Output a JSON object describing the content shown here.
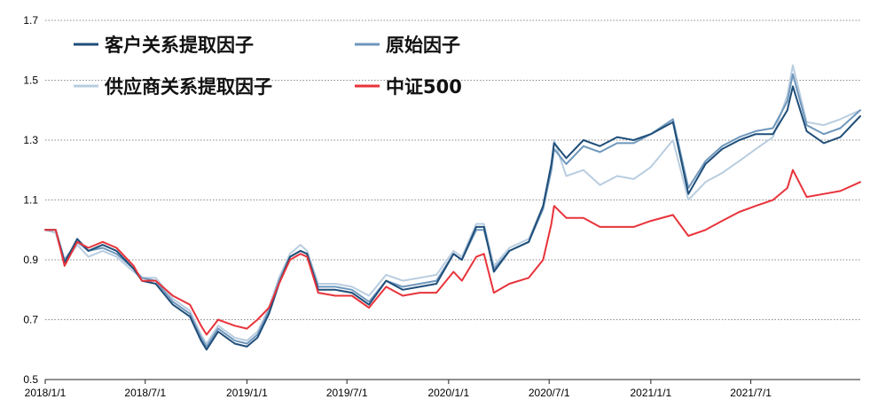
{
  "chart_data": {
    "type": "line",
    "title": "",
    "xlabel": "",
    "ylabel": "",
    "x_range": [
      "2018-01-01",
      "2022-01-15"
    ],
    "ylim": [
      0.5,
      1.7
    ],
    "y_ticks": [
      0.5,
      0.7,
      0.9,
      1.1,
      1.3,
      1.5,
      1.7
    ],
    "y_tick_labels": [
      "0.5",
      "0.7",
      "0.9",
      "1.1",
      "1.3",
      "1.5",
      "1.7"
    ],
    "x_ticks": [
      "2018-01-01",
      "2018-07-01",
      "2019-01-01",
      "2019-07-01",
      "2020-01-01",
      "2020-07-01",
      "2021-01-01",
      "2021-07-01"
    ],
    "x_tick_labels": [
      "2018/1/1",
      "2018/7/1",
      "2019/1/1",
      "2019/7/1",
      "2020/1/1",
      "2020/7/1",
      "2021/1/1",
      "2021/7/1"
    ],
    "grid": "horizontal dotted",
    "legend_position": "top-left",
    "series": [
      {
        "name": "客户关系提取因子",
        "color": "#1f4e79",
        "points": [
          [
            "2018-01-01",
            1.0
          ],
          [
            "2018-01-20",
            1.0
          ],
          [
            "2018-02-05",
            0.89
          ],
          [
            "2018-02-28",
            0.97
          ],
          [
            "2018-03-20",
            0.93
          ],
          [
            "2018-04-15",
            0.95
          ],
          [
            "2018-05-10",
            0.93
          ],
          [
            "2018-06-10",
            0.87
          ],
          [
            "2018-06-25",
            0.83
          ],
          [
            "2018-07-20",
            0.82
          ],
          [
            "2018-08-20",
            0.75
          ],
          [
            "2018-09-20",
            0.71
          ],
          [
            "2018-10-10",
            0.63
          ],
          [
            "2018-10-20",
            0.6
          ],
          [
            "2018-11-10",
            0.66
          ],
          [
            "2018-12-10",
            0.62
          ],
          [
            "2019-01-01",
            0.61
          ],
          [
            "2019-01-20",
            0.64
          ],
          [
            "2019-02-10",
            0.72
          ],
          [
            "2019-02-28",
            0.82
          ],
          [
            "2019-03-20",
            0.91
          ],
          [
            "2019-04-08",
            0.93
          ],
          [
            "2019-04-20",
            0.92
          ],
          [
            "2019-05-10",
            0.8
          ],
          [
            "2019-06-10",
            0.8
          ],
          [
            "2019-07-10",
            0.79
          ],
          [
            "2019-08-10",
            0.75
          ],
          [
            "2019-09-10",
            0.83
          ],
          [
            "2019-10-10",
            0.8
          ],
          [
            "2019-11-10",
            0.81
          ],
          [
            "2019-12-10",
            0.82
          ],
          [
            "2020-01-10",
            0.92
          ],
          [
            "2020-01-25",
            0.9
          ],
          [
            "2020-02-20",
            1.01
          ],
          [
            "2020-03-05",
            1.01
          ],
          [
            "2020-03-23",
            0.86
          ],
          [
            "2020-04-20",
            0.93
          ],
          [
            "2020-05-25",
            0.96
          ],
          [
            "2020-06-20",
            1.08
          ],
          [
            "2020-07-05",
            1.22
          ],
          [
            "2020-07-10",
            1.29
          ],
          [
            "2020-08-01",
            1.24
          ],
          [
            "2020-09-01",
            1.3
          ],
          [
            "2020-10-01",
            1.28
          ],
          [
            "2020-11-01",
            1.31
          ],
          [
            "2020-12-01",
            1.3
          ],
          [
            "2021-01-01",
            1.32
          ],
          [
            "2021-02-10",
            1.36
          ],
          [
            "2021-03-10",
            1.12
          ],
          [
            "2021-04-10",
            1.22
          ],
          [
            "2021-05-10",
            1.27
          ],
          [
            "2021-06-10",
            1.3
          ],
          [
            "2021-07-10",
            1.32
          ],
          [
            "2021-08-10",
            1.32
          ],
          [
            "2021-09-05",
            1.4
          ],
          [
            "2021-09-15",
            1.48
          ],
          [
            "2021-10-10",
            1.33
          ],
          [
            "2021-11-10",
            1.29
          ],
          [
            "2021-12-10",
            1.31
          ],
          [
            "2022-01-15",
            1.38
          ]
        ]
      },
      {
        "name": "原始因子",
        "color": "#6f97bc",
        "points": [
          [
            "2018-01-01",
            1.0
          ],
          [
            "2018-01-20",
            1.0
          ],
          [
            "2018-02-05",
            0.9
          ],
          [
            "2018-02-28",
            0.96
          ],
          [
            "2018-03-20",
            0.93
          ],
          [
            "2018-04-15",
            0.94
          ],
          [
            "2018-05-10",
            0.92
          ],
          [
            "2018-06-10",
            0.87
          ],
          [
            "2018-06-25",
            0.84
          ],
          [
            "2018-07-20",
            0.83
          ],
          [
            "2018-08-20",
            0.76
          ],
          [
            "2018-09-20",
            0.72
          ],
          [
            "2018-10-10",
            0.64
          ],
          [
            "2018-10-20",
            0.61
          ],
          [
            "2018-11-10",
            0.67
          ],
          [
            "2018-12-10",
            0.63
          ],
          [
            "2019-01-01",
            0.62
          ],
          [
            "2019-01-20",
            0.65
          ],
          [
            "2019-02-10",
            0.73
          ],
          [
            "2019-02-28",
            0.83
          ],
          [
            "2019-03-20",
            0.91
          ],
          [
            "2019-04-08",
            0.93
          ],
          [
            "2019-04-20",
            0.92
          ],
          [
            "2019-05-10",
            0.81
          ],
          [
            "2019-06-10",
            0.81
          ],
          [
            "2019-07-10",
            0.8
          ],
          [
            "2019-08-10",
            0.76
          ],
          [
            "2019-09-10",
            0.83
          ],
          [
            "2019-10-10",
            0.81
          ],
          [
            "2019-11-10",
            0.82
          ],
          [
            "2019-12-10",
            0.83
          ],
          [
            "2020-01-10",
            0.92
          ],
          [
            "2020-01-25",
            0.9
          ],
          [
            "2020-02-20",
            1.0
          ],
          [
            "2020-03-05",
            1.0
          ],
          [
            "2020-03-23",
            0.87
          ],
          [
            "2020-04-20",
            0.93
          ],
          [
            "2020-05-25",
            0.96
          ],
          [
            "2020-06-20",
            1.07
          ],
          [
            "2020-07-05",
            1.2
          ],
          [
            "2020-07-10",
            1.27
          ],
          [
            "2020-08-01",
            1.22
          ],
          [
            "2020-09-01",
            1.28
          ],
          [
            "2020-10-01",
            1.26
          ],
          [
            "2020-11-01",
            1.29
          ],
          [
            "2020-12-01",
            1.29
          ],
          [
            "2021-01-01",
            1.32
          ],
          [
            "2021-02-10",
            1.37
          ],
          [
            "2021-03-10",
            1.14
          ],
          [
            "2021-04-10",
            1.23
          ],
          [
            "2021-05-10",
            1.28
          ],
          [
            "2021-06-10",
            1.31
          ],
          [
            "2021-07-10",
            1.33
          ],
          [
            "2021-08-10",
            1.34
          ],
          [
            "2021-09-05",
            1.43
          ],
          [
            "2021-09-15",
            1.52
          ],
          [
            "2021-10-10",
            1.35
          ],
          [
            "2021-11-10",
            1.32
          ],
          [
            "2021-12-10",
            1.34
          ],
          [
            "2022-01-15",
            1.4
          ]
        ]
      },
      {
        "name": "供应商关系提取因子",
        "color": "#b9cde0",
        "points": [
          [
            "2018-01-01",
            1.0
          ],
          [
            "2018-01-20",
            0.99
          ],
          [
            "2018-02-05",
            0.89
          ],
          [
            "2018-02-28",
            0.95
          ],
          [
            "2018-03-20",
            0.91
          ],
          [
            "2018-04-15",
            0.93
          ],
          [
            "2018-05-10",
            0.91
          ],
          [
            "2018-06-10",
            0.86
          ],
          [
            "2018-06-25",
            0.84
          ],
          [
            "2018-07-20",
            0.84
          ],
          [
            "2018-08-20",
            0.77
          ],
          [
            "2018-09-20",
            0.73
          ],
          [
            "2018-10-10",
            0.65
          ],
          [
            "2018-10-20",
            0.62
          ],
          [
            "2018-11-10",
            0.68
          ],
          [
            "2018-12-10",
            0.64
          ],
          [
            "2019-01-01",
            0.63
          ],
          [
            "2019-01-20",
            0.66
          ],
          [
            "2019-02-10",
            0.74
          ],
          [
            "2019-02-28",
            0.84
          ],
          [
            "2019-03-20",
            0.92
          ],
          [
            "2019-04-08",
            0.95
          ],
          [
            "2019-04-20",
            0.93
          ],
          [
            "2019-05-10",
            0.82
          ],
          [
            "2019-06-10",
            0.82
          ],
          [
            "2019-07-10",
            0.81
          ],
          [
            "2019-08-10",
            0.78
          ],
          [
            "2019-09-10",
            0.85
          ],
          [
            "2019-10-10",
            0.83
          ],
          [
            "2019-11-10",
            0.84
          ],
          [
            "2019-12-10",
            0.85
          ],
          [
            "2020-01-10",
            0.93
          ],
          [
            "2020-01-25",
            0.91
          ],
          [
            "2020-02-20",
            1.02
          ],
          [
            "2020-03-05",
            1.02
          ],
          [
            "2020-03-23",
            0.88
          ],
          [
            "2020-04-20",
            0.94
          ],
          [
            "2020-05-25",
            0.97
          ],
          [
            "2020-06-20",
            1.08
          ],
          [
            "2020-07-05",
            1.2
          ],
          [
            "2020-07-10",
            1.3
          ],
          [
            "2020-08-01",
            1.18
          ],
          [
            "2020-09-01",
            1.2
          ],
          [
            "2020-10-01",
            1.15
          ],
          [
            "2020-11-01",
            1.18
          ],
          [
            "2020-12-01",
            1.17
          ],
          [
            "2021-01-01",
            1.21
          ],
          [
            "2021-02-10",
            1.3
          ],
          [
            "2021-03-10",
            1.1
          ],
          [
            "2021-04-10",
            1.16
          ],
          [
            "2021-05-10",
            1.19
          ],
          [
            "2021-06-10",
            1.23
          ],
          [
            "2021-07-10",
            1.27
          ],
          [
            "2021-08-10",
            1.31
          ],
          [
            "2021-09-05",
            1.45
          ],
          [
            "2021-09-15",
            1.55
          ],
          [
            "2021-10-10",
            1.36
          ],
          [
            "2021-11-10",
            1.35
          ],
          [
            "2021-12-10",
            1.37
          ],
          [
            "2022-01-15",
            1.4
          ]
        ]
      },
      {
        "name": "中证500",
        "color": "#e8333a",
        "points": [
          [
            "2018-01-01",
            1.0
          ],
          [
            "2018-01-20",
            1.0
          ],
          [
            "2018-02-05",
            0.88
          ],
          [
            "2018-02-28",
            0.96
          ],
          [
            "2018-03-20",
            0.94
          ],
          [
            "2018-04-15",
            0.96
          ],
          [
            "2018-05-10",
            0.94
          ],
          [
            "2018-06-10",
            0.88
          ],
          [
            "2018-06-25",
            0.83
          ],
          [
            "2018-07-20",
            0.83
          ],
          [
            "2018-08-20",
            0.78
          ],
          [
            "2018-09-20",
            0.75
          ],
          [
            "2018-10-10",
            0.68
          ],
          [
            "2018-10-20",
            0.65
          ],
          [
            "2018-11-10",
            0.7
          ],
          [
            "2018-12-10",
            0.68
          ],
          [
            "2019-01-01",
            0.67
          ],
          [
            "2019-01-20",
            0.7
          ],
          [
            "2019-02-10",
            0.74
          ],
          [
            "2019-02-28",
            0.82
          ],
          [
            "2019-03-20",
            0.9
          ],
          [
            "2019-04-08",
            0.92
          ],
          [
            "2019-04-20",
            0.91
          ],
          [
            "2019-05-10",
            0.79
          ],
          [
            "2019-06-10",
            0.78
          ],
          [
            "2019-07-10",
            0.78
          ],
          [
            "2019-08-10",
            0.74
          ],
          [
            "2019-09-10",
            0.81
          ],
          [
            "2019-10-10",
            0.78
          ],
          [
            "2019-11-10",
            0.79
          ],
          [
            "2019-12-10",
            0.79
          ],
          [
            "2020-01-10",
            0.86
          ],
          [
            "2020-01-25",
            0.83
          ],
          [
            "2020-02-20",
            0.91
          ],
          [
            "2020-03-05",
            0.92
          ],
          [
            "2020-03-23",
            0.79
          ],
          [
            "2020-04-20",
            0.82
          ],
          [
            "2020-05-25",
            0.84
          ],
          [
            "2020-06-20",
            0.9
          ],
          [
            "2020-07-05",
            1.02
          ],
          [
            "2020-07-10",
            1.08
          ],
          [
            "2020-08-01",
            1.04
          ],
          [
            "2020-09-01",
            1.04
          ],
          [
            "2020-10-01",
            1.01
          ],
          [
            "2020-11-01",
            1.01
          ],
          [
            "2020-12-01",
            1.01
          ],
          [
            "2021-01-01",
            1.03
          ],
          [
            "2021-02-10",
            1.05
          ],
          [
            "2021-03-10",
            0.98
          ],
          [
            "2021-04-10",
            1.0
          ],
          [
            "2021-05-10",
            1.03
          ],
          [
            "2021-06-10",
            1.06
          ],
          [
            "2021-07-10",
            1.08
          ],
          [
            "2021-08-10",
            1.1
          ],
          [
            "2021-09-05",
            1.14
          ],
          [
            "2021-09-15",
            1.2
          ],
          [
            "2021-10-10",
            1.11
          ],
          [
            "2021-11-10",
            1.12
          ],
          [
            "2021-12-10",
            1.13
          ],
          [
            "2022-01-15",
            1.16
          ]
        ]
      }
    ],
    "legend": [
      {
        "series": 0,
        "label": "客户关系提取因子"
      },
      {
        "series": 1,
        "label": "原始因子"
      },
      {
        "series": 2,
        "label": "供应商关系提取因子"
      },
      {
        "series": 3,
        "label": "中证500"
      }
    ]
  }
}
